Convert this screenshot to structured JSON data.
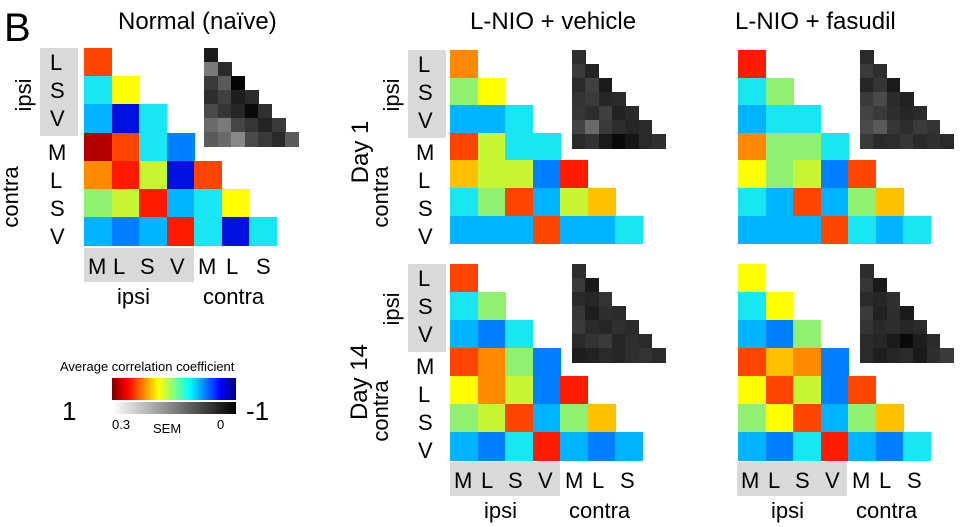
{
  "panel_letter": "B",
  "titles": {
    "normal": "Normal (naïve)",
    "vehicle": "L-NIO + vehicle",
    "fasudil": "L-NIO + fasudil"
  },
  "row_labels": {
    "day1": "Day 1",
    "day14": "Day 14"
  },
  "groups": {
    "ipsi": "ipsi",
    "contra": "contra"
  },
  "regions": {
    "ipsi": [
      "L",
      "S",
      "V"
    ],
    "contra": [
      "M",
      "L",
      "S",
      "V"
    ],
    "bottom_ipsi": [
      "M",
      "L",
      "S",
      "V"
    ],
    "bottom_contra": [
      "M",
      "L",
      "S"
    ]
  },
  "legend": {
    "title": "Average correlation coefficient",
    "corr_max": "1",
    "corr_min": "-1",
    "sem_max": "0.3",
    "sem_label": "SEM",
    "sem_min": "0"
  },
  "colors": {
    "dark_red": "#b30000",
    "red": "#ff1a00",
    "orange_red": "#ff4400",
    "orange": "#ff8a00",
    "yellow_orange": "#ffc000",
    "yellow": "#ffff00",
    "yellow_green": "#c8f532",
    "green": "#90f070",
    "cyan": "#18e6f2",
    "light_blue": "#00b4ff",
    "blue": "#0080ff",
    "dark_blue": "#0010e0",
    "gray_box": "#d9d9d9"
  },
  "heatmaps": {
    "normal": [
      [
        "orange_red"
      ],
      [
        "cyan",
        "yellow"
      ],
      [
        "light_blue",
        "dark_blue",
        "cyan"
      ],
      [
        "dark_red",
        "orange_red",
        "cyan",
        "blue"
      ],
      [
        "orange",
        "red",
        "yellow_green",
        "dark_blue",
        "orange_red"
      ],
      [
        "green",
        "yellow_green",
        "red",
        "light_blue",
        "cyan",
        "yellow"
      ],
      [
        "light_blue",
        "blue",
        "light_blue",
        "red",
        "cyan",
        "dark_blue",
        "cyan"
      ]
    ],
    "vehicle_day1": [
      [
        "orange"
      ],
      [
        "green",
        "yellow"
      ],
      [
        "light_blue",
        "light_blue",
        "cyan"
      ],
      [
        "orange_red",
        "yellow_green",
        "cyan",
        "cyan"
      ],
      [
        "yellow_orange",
        "yellow_green",
        "yellow_green",
        "blue",
        "red"
      ],
      [
        "cyan",
        "green",
        "orange_red",
        "light_blue",
        "yellow_green",
        "yellow_orange"
      ],
      [
        "light_blue",
        "light_blue",
        "light_blue",
        "orange_red",
        "light_blue",
        "light_blue",
        "cyan"
      ]
    ],
    "fasudil_day1": [
      [
        "red"
      ],
      [
        "cyan",
        "green"
      ],
      [
        "light_blue",
        "cyan",
        "cyan"
      ],
      [
        "orange",
        "green",
        "green",
        "cyan"
      ],
      [
        "yellow",
        "green",
        "yellow_green",
        "blue",
        "orange_red"
      ],
      [
        "cyan",
        "light_blue",
        "orange_red",
        "light_blue",
        "green",
        "yellow_orange"
      ],
      [
        "light_blue",
        "light_blue",
        "light_blue",
        "orange_red",
        "cyan",
        "light_blue",
        "cyan"
      ]
    ],
    "vehicle_day14": [
      [
        "orange_red"
      ],
      [
        "cyan",
        "green"
      ],
      [
        "light_blue",
        "blue",
        "cyan"
      ],
      [
        "orange_red",
        "orange",
        "green",
        "blue"
      ],
      [
        "yellow",
        "orange",
        "yellow_green",
        "blue",
        "red"
      ],
      [
        "green",
        "yellow_green",
        "orange_red",
        "light_blue",
        "green",
        "yellow_orange"
      ],
      [
        "light_blue",
        "blue",
        "cyan",
        "red",
        "light_blue",
        "blue",
        "light_blue"
      ]
    ],
    "fasudil_day14": [
      [
        "yellow"
      ],
      [
        "cyan",
        "yellow"
      ],
      [
        "light_blue",
        "blue",
        "green"
      ],
      [
        "orange_red",
        "yellow_orange",
        "orange",
        "blue"
      ],
      [
        "yellow",
        "orange_red",
        "yellow_green",
        "blue",
        "orange_red"
      ],
      [
        "green",
        "yellow",
        "orange_red",
        "light_blue",
        "green",
        "yellow_orange"
      ],
      [
        "light_blue",
        "blue",
        "cyan",
        "red",
        "light_blue",
        "blue",
        "cyan"
      ]
    ]
  },
  "sem_maps": {
    "normal": [
      [
        "#1a1a1a"
      ],
      [
        "#7a7a7a",
        "#2a2a2a"
      ],
      [
        "#3a3a3a",
        "#5a5a5a",
        "#050505"
      ],
      [
        "#2e2e2e",
        "#404040",
        "#1e1e1e",
        "#2a2a2a"
      ],
      [
        "#4a4a4a",
        "#363636",
        "#262626",
        "#0a0a0a",
        "#303030"
      ],
      [
        "#6a6a6a",
        "#7a7a7a",
        "#454545",
        "#353535",
        "#242424",
        "#3a3a3a"
      ],
      [
        "#5a5a5a",
        "#6a6a6a",
        "#888888",
        "#4a4a4a",
        "#3a3a3a",
        "#2a2a2a",
        "#5a5a5a"
      ]
    ],
    "vehicle_day1": [
      [
        "#2e2e2e"
      ],
      [
        "#3a3a3a",
        "#242424"
      ],
      [
        "#2a2a2a",
        "#404040",
        "#1a1a1a"
      ],
      [
        "#333333",
        "#3a3a3a",
        "#262626",
        "#2a2a2a"
      ],
      [
        "#363636",
        "#2e2e2e",
        "#404040",
        "#222222",
        "#2a2a2a"
      ],
      [
        "#444444",
        "#6a6a6a",
        "#3a3a3a",
        "#2e2e2e",
        "#262626",
        "#2a2a2a"
      ],
      [
        "#2a2a2a",
        "#333333",
        "#1a1a1a",
        "#0a0a0a",
        "#151515",
        "#2a2a2a",
        "#303030"
      ]
    ],
    "fasudil_day1": [
      [
        "#2a2a2a"
      ],
      [
        "#3a3a3a",
        "#2e2e2e"
      ],
      [
        "#262626",
        "#363636",
        "#1a1a1a"
      ],
      [
        "#3a3a3a",
        "#4a4a4a",
        "#2a2a2a",
        "#222222"
      ],
      [
        "#444444",
        "#3a3a3a",
        "#2e2e2e",
        "#262626",
        "#2a2a2a"
      ],
      [
        "#4a4a4a",
        "#5a5a5a",
        "#363636",
        "#2e2e2e",
        "#3a3a3a",
        "#333333"
      ],
      [
        "#3a3a3a",
        "#2a2a2a",
        "#2e2e2e",
        "#363636",
        "#2a2a2a",
        "#303030",
        "#2a2a2a"
      ]
    ],
    "vehicle_day14": [
      [
        "#2e2e2e"
      ],
      [
        "#3a3a3a",
        "#1a1a1a"
      ],
      [
        "#2a2a2a",
        "#262626",
        "#333333"
      ],
      [
        "#363636",
        "#1e1e1e",
        "#2e2e2e",
        "#2a2a2a"
      ],
      [
        "#3a3a3a",
        "#2a2a2a",
        "#262626",
        "#303030",
        "#2a2a2a"
      ],
      [
        "#2a2a2a",
        "#333333",
        "#3a3a3a",
        "#262626",
        "#2e2e2e",
        "#2a2a2a"
      ],
      [
        "#1e1e1e",
        "#222222",
        "#2a2a2a",
        "#262626",
        "#2e2e2e",
        "#333333",
        "#2a2a2a"
      ]
    ],
    "fasudil_day14": [
      [
        "#2e2e2e"
      ],
      [
        "#363636",
        "#1a1a1a"
      ],
      [
        "#2a2a2a",
        "#262626",
        "#303030"
      ],
      [
        "#3a3a3a",
        "#222222",
        "#2e2e2e",
        "#1a1a1a"
      ],
      [
        "#333333",
        "#2a2a2a",
        "#2e2e2e",
        "#262626",
        "#2a2a2a"
      ],
      [
        "#2a2a2a",
        "#262626",
        "#1a1a1a",
        "#0a0a0a",
        "#1e1e1e",
        "#2a2a2a"
      ],
      [
        "#2a2a2a",
        "#1e1e1e",
        "#262626",
        "#2a2a2a",
        "#1a1a1a",
        "#2e2e2e",
        "#3a3a3a"
      ]
    ]
  }
}
